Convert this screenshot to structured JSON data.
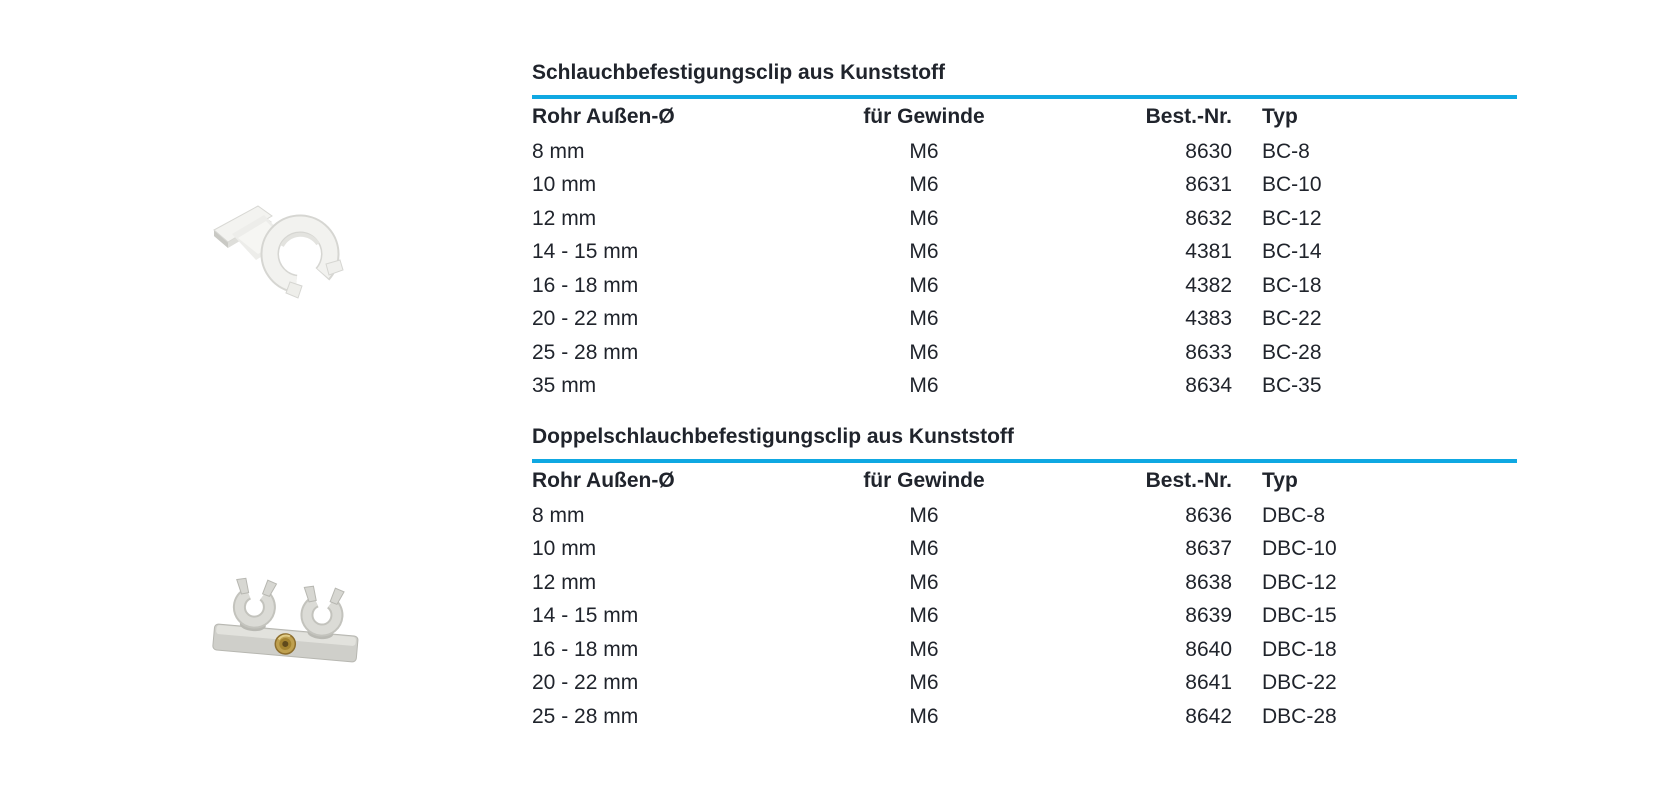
{
  "page": {
    "accent_color": "#0fa8e2",
    "text_color": "#20242c",
    "background_color": "#ffffff"
  },
  "images": {
    "single_clip": "single-plastic-hose-clip-photo",
    "double_clip": "double-plastic-hose-clip-photo"
  },
  "sections": [
    {
      "title": "Schlauchbefestigungsclip aus Kunststoff",
      "columns": [
        "Rohr Außen-Ø",
        "für Gewinde",
        "Best.-Nr.",
        "Typ"
      ],
      "rows": [
        [
          "8 mm",
          "M6",
          "8630",
          "BC-8"
        ],
        [
          "10 mm",
          "M6",
          "8631",
          "BC-10"
        ],
        [
          "12 mm",
          "M6",
          "8632",
          "BC-12"
        ],
        [
          "14 - 15 mm",
          "M6",
          "4381",
          "BC-14"
        ],
        [
          "16 - 18 mm",
          "M6",
          "4382",
          "BC-18"
        ],
        [
          "20 - 22 mm",
          "M6",
          "4383",
          "BC-22"
        ],
        [
          "25 - 28 mm",
          "M6",
          "8633",
          "BC-28"
        ],
        [
          "35 mm",
          "M6",
          "8634",
          "BC-35"
        ]
      ]
    },
    {
      "title": "Doppelschlauchbefestigungsclip aus Kunststoff",
      "columns": [
        "Rohr Außen-Ø",
        "für Gewinde",
        "Best.-Nr.",
        "Typ"
      ],
      "rows": [
        [
          "8 mm",
          "M6",
          "8636",
          "DBC-8"
        ],
        [
          "10 mm",
          "M6",
          "8637",
          "DBC-10"
        ],
        [
          "12 mm",
          "M6",
          "8638",
          "DBC-12"
        ],
        [
          "14 - 15 mm",
          "M6",
          "8639",
          "DBC-15"
        ],
        [
          "16 - 18 mm",
          "M6",
          "8640",
          "DBC-18"
        ],
        [
          "20 - 22 mm",
          "M6",
          "8641",
          "DBC-22"
        ],
        [
          "25 - 28 mm",
          "M6",
          "8642",
          "DBC-28"
        ]
      ]
    }
  ]
}
